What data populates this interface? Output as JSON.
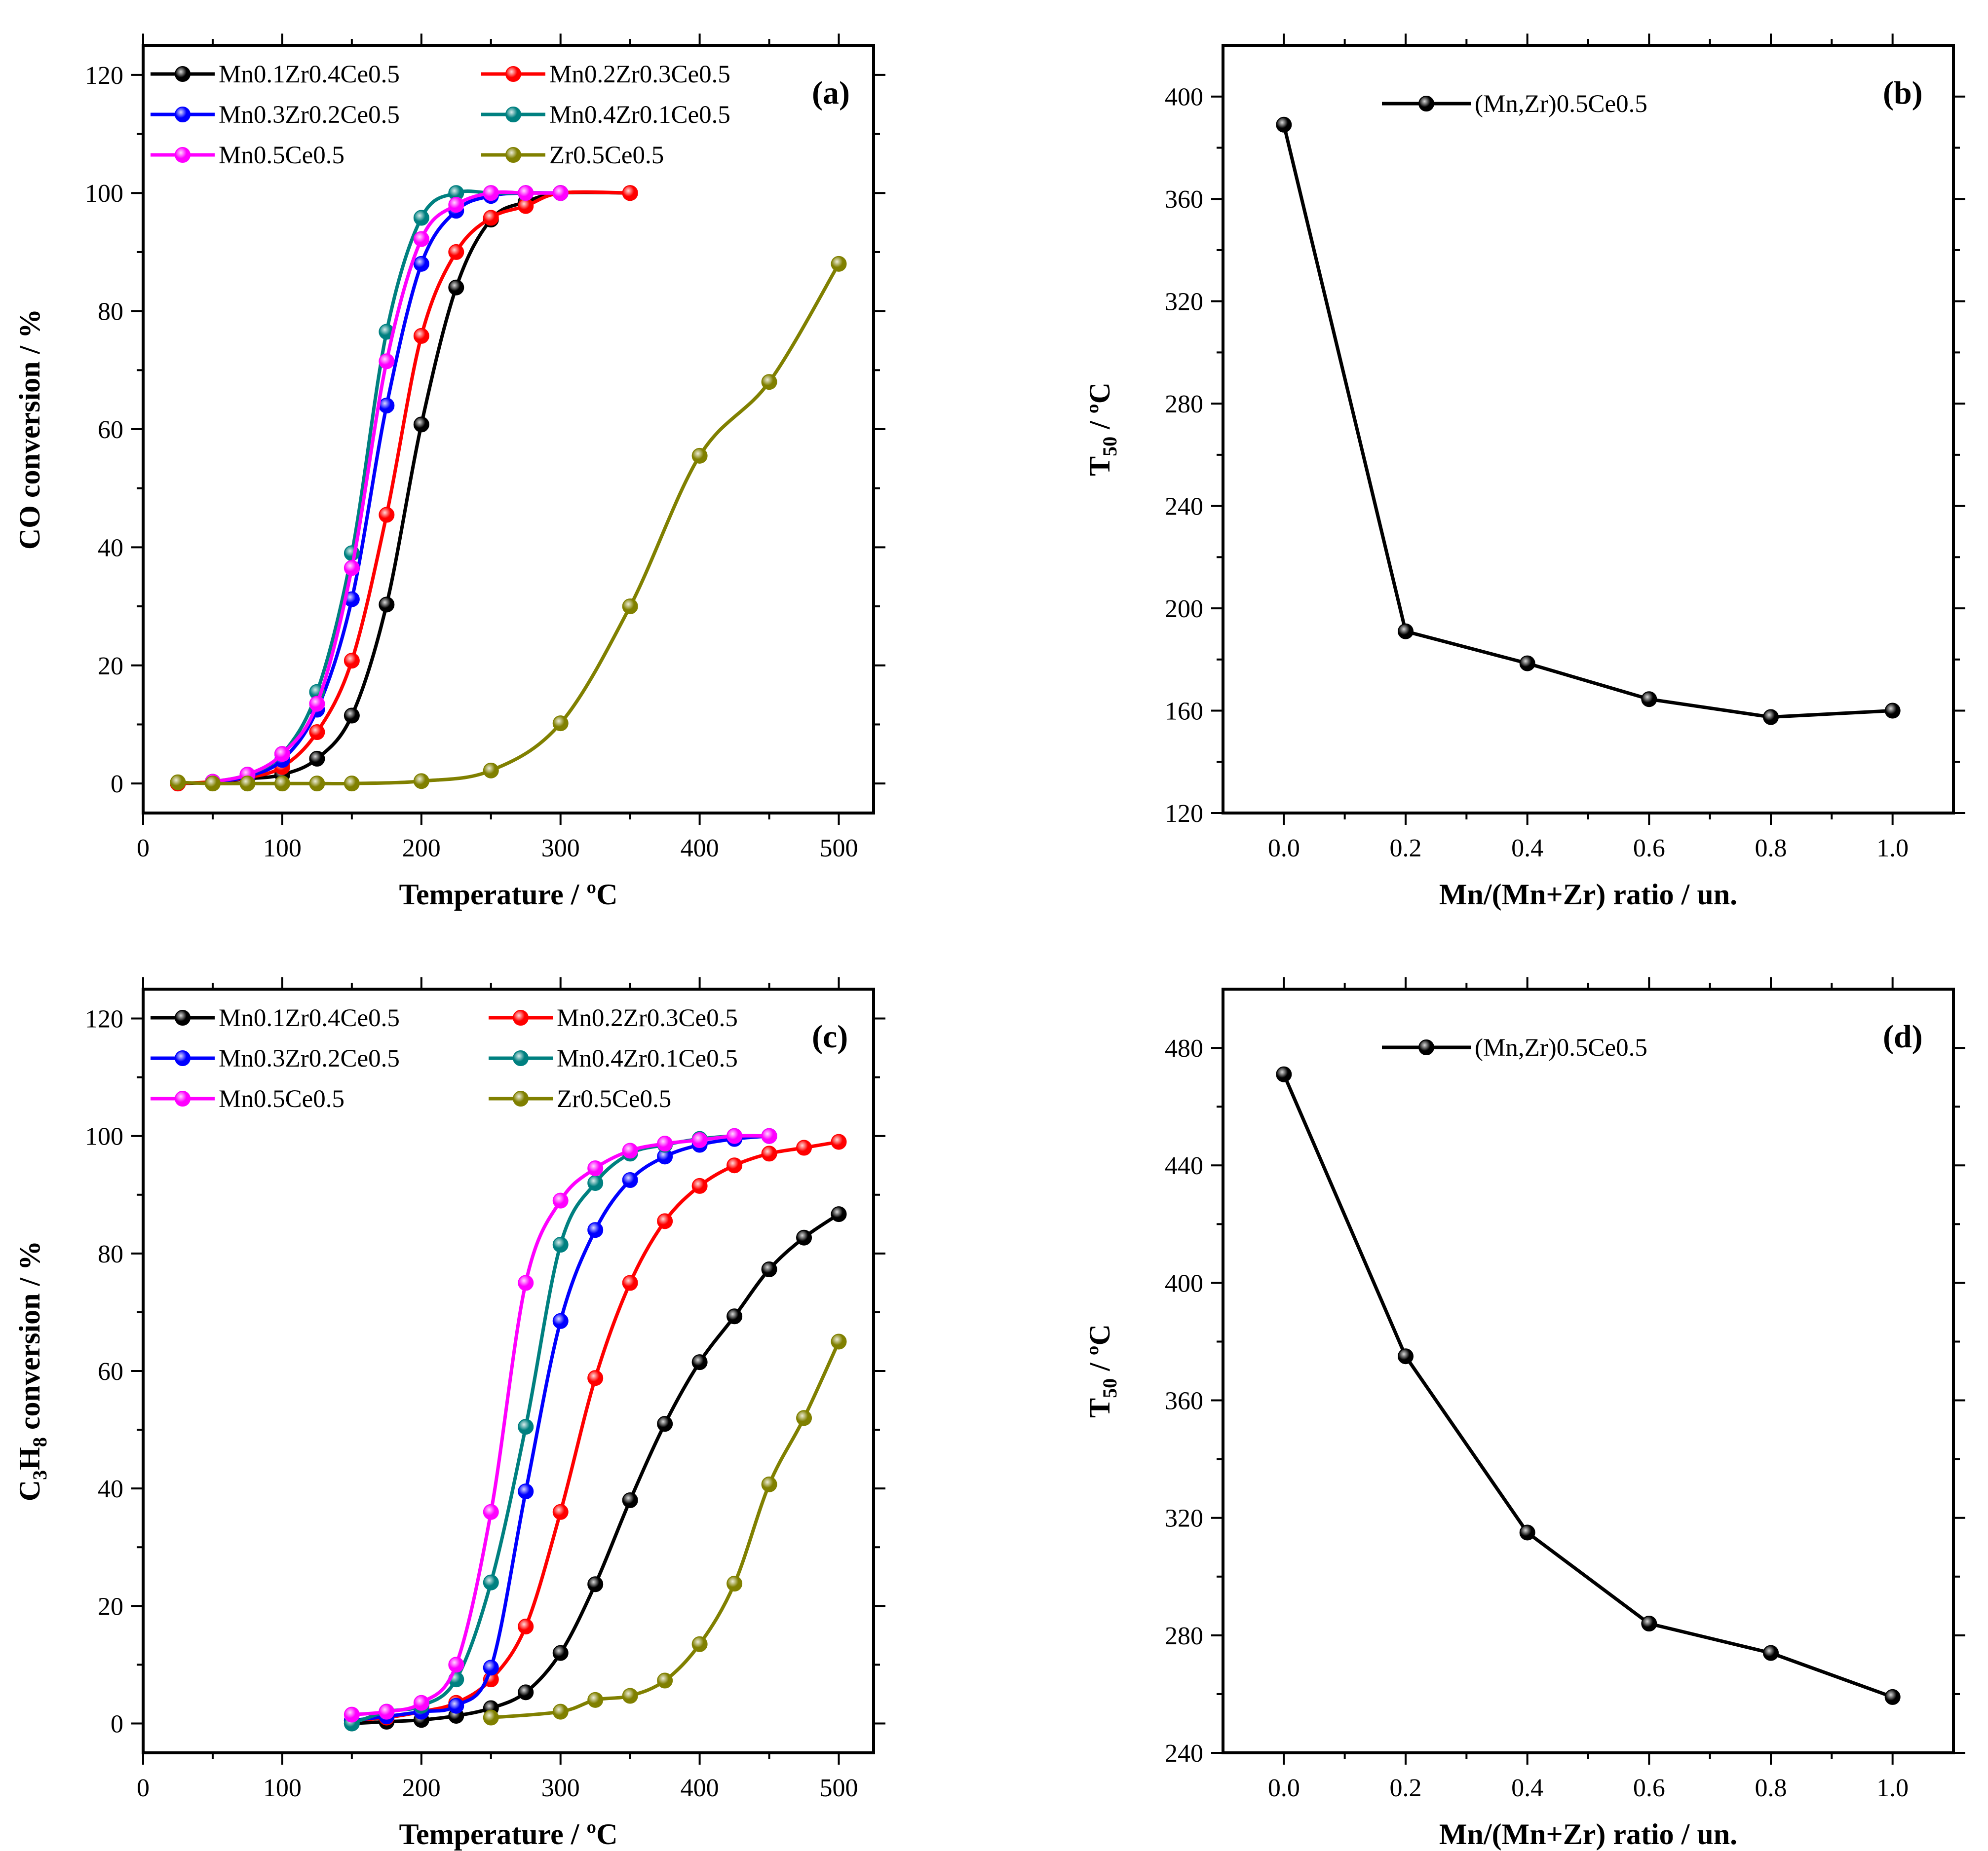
{
  "chart_data": [
    {
      "panel": "(a)",
      "type": "line",
      "xlabel": "Temperature / ºC",
      "ylabel": "CO conversion / %",
      "xlim": [
        0,
        525
      ],
      "ylim": [
        -5,
        125
      ],
      "xticks": [
        0,
        100,
        200,
        300,
        400,
        500
      ],
      "yticks": [
        0,
        20,
        40,
        60,
        80,
        100,
        120
      ],
      "legend_position": "top-left",
      "series": [
        {
          "name": "Mn0.1Zr0.4Ce0.5",
          "color": "#000000",
          "x": [
            25,
            50,
            75,
            100,
            125,
            150,
            175,
            200,
            225,
            250,
            275,
            300,
            350
          ],
          "y": [
            0,
            0.2,
            0.8,
            1.5,
            4.2,
            11.5,
            30.3,
            60.8,
            84.0,
            95.5,
            98.5,
            100,
            100
          ]
        },
        {
          "name": "Mn0.2Zr0.3Ce0.5",
          "color": "#ff0000",
          "x": [
            25,
            50,
            75,
            100,
            125,
            150,
            175,
            200,
            225,
            250,
            275,
            300,
            350
          ],
          "y": [
            0,
            0.3,
            1.0,
            2.8,
            8.7,
            20.8,
            45.5,
            75.8,
            90.0,
            95.8,
            97.8,
            100,
            100
          ]
        },
        {
          "name": "Mn0.3Zr0.2Ce0.5",
          "color": "#0000ff",
          "x": [
            50,
            75,
            100,
            125,
            150,
            175,
            200,
            225,
            250,
            275,
            300
          ],
          "y": [
            0.2,
            1.2,
            4.0,
            12.5,
            31.2,
            64.0,
            88.0,
            97.0,
            99.5,
            100,
            100
          ]
        },
        {
          "name": "Mn0.4Zr0.1Ce0.5",
          "color": "#008080",
          "x": [
            50,
            75,
            100,
            125,
            150,
            175,
            200,
            225,
            250,
            275,
            300
          ],
          "y": [
            0.3,
            1.5,
            5.0,
            15.5,
            39.0,
            76.5,
            95.8,
            100,
            100,
            100,
            100
          ]
        },
        {
          "name": "Mn0.5Ce0.5",
          "color": "#ff00ff",
          "x": [
            50,
            75,
            100,
            125,
            150,
            175,
            200,
            225,
            250,
            275,
            300
          ],
          "y": [
            0.3,
            1.5,
            5.0,
            13.5,
            36.5,
            71.5,
            92.2,
            98.0,
            100,
            100,
            100
          ]
        },
        {
          "name": "Zr0.5Ce0.5",
          "color": "#808000",
          "x": [
            25,
            50,
            75,
            100,
            125,
            150,
            200,
            250,
            300,
            350,
            400,
            450,
            500
          ],
          "y": [
            0.2,
            0,
            0,
            0,
            0,
            0,
            0.4,
            2.2,
            10.2,
            30.0,
            55.5,
            68.0,
            88.0
          ]
        }
      ]
    },
    {
      "panel": "(b)",
      "type": "line",
      "xlabel": "Mn/(Mn+Zr) ratio / un.",
      "ylabel_main": "T",
      "ylabel_sub": "50",
      "ylabel_rest": " / ºC",
      "xlim": [
        -0.1,
        1.1
      ],
      "ylim": [
        120,
        420
      ],
      "xticks": [
        0.0,
        0.2,
        0.4,
        0.6,
        0.8,
        1.0
      ],
      "yticks": [
        120,
        160,
        200,
        240,
        280,
        320,
        360,
        400
      ],
      "legend_position": "top-left",
      "series": [
        {
          "name": "(Mn,Zr)0.5Ce0.5",
          "color": "#000000",
          "x": [
            0.0,
            0.2,
            0.4,
            0.6,
            0.8,
            1.0
          ],
          "y": [
            389,
            191,
            178.5,
            164.5,
            157.5,
            160
          ]
        }
      ]
    },
    {
      "panel": "(c)",
      "type": "line",
      "xlabel": "Temperature / ºC",
      "ylabel_parts": [
        "C",
        "3",
        "H",
        "8",
        " conversion / %"
      ],
      "xlim": [
        0,
        525
      ],
      "ylim": [
        -5,
        125
      ],
      "xticks": [
        0,
        100,
        200,
        300,
        400,
        500
      ],
      "yticks": [
        0,
        20,
        40,
        60,
        80,
        100,
        120
      ],
      "legend_position": "top-left",
      "series": [
        {
          "name": "Mn0.1Zr0.4Ce0.5",
          "color": "#000000",
          "x": [
            150,
            175,
            200,
            225,
            250,
            275,
            300,
            325,
            350,
            375,
            400,
            425,
            450,
            475,
            500
          ],
          "y": [
            0,
            0.3,
            0.6,
            1.3,
            2.6,
            5.3,
            12.0,
            23.7,
            38.0,
            51.0,
            61.5,
            69.3,
            77.3,
            82.7,
            86.7
          ]
        },
        {
          "name": "Mn0.2Zr0.3Ce0.5",
          "color": "#ff0000",
          "x": [
            150,
            175,
            200,
            225,
            250,
            275,
            300,
            325,
            350,
            375,
            400,
            425,
            450,
            475,
            500
          ],
          "y": [
            0.5,
            1.0,
            2.0,
            3.5,
            7.5,
            16.5,
            36.0,
            58.8,
            75.0,
            85.5,
            91.5,
            95.0,
            97.0,
            98.0,
            99.0
          ]
        },
        {
          "name": "Mn0.3Zr0.2Ce0.5",
          "color": "#0000ff",
          "x": [
            150,
            175,
            200,
            225,
            250,
            275,
            300,
            325,
            350,
            375,
            400,
            425,
            450
          ],
          "y": [
            0.5,
            1.2,
            2.0,
            3.0,
            9.5,
            39.5,
            68.5,
            84.0,
            92.5,
            96.5,
            98.5,
            99.5,
            100
          ]
        },
        {
          "name": "Mn0.4Zr0.1Ce0.5",
          "color": "#008080",
          "x": [
            150,
            175,
            200,
            225,
            250,
            275,
            300,
            325,
            350,
            375,
            400,
            425,
            450
          ],
          "y": [
            0,
            2.0,
            3.0,
            7.5,
            24.0,
            50.5,
            81.5,
            92.0,
            97.0,
            98.5,
            99.5,
            100,
            100
          ]
        },
        {
          "name": "Mn0.5Ce0.5",
          "color": "#ff00ff",
          "x": [
            150,
            175,
            200,
            225,
            250,
            275,
            300,
            325,
            350,
            375,
            400,
            425,
            450
          ],
          "y": [
            1.5,
            2.0,
            3.5,
            10.0,
            36.0,
            75.0,
            89.0,
            94.5,
            97.5,
            98.7,
            99.3,
            100,
            100
          ]
        },
        {
          "name": "Zr0.5Ce0.5",
          "color": "#808000",
          "x": [
            250,
            300,
            325,
            350,
            375,
            400,
            425,
            450,
            475,
            500
          ],
          "y": [
            1.0,
            2.0,
            4.0,
            4.7,
            7.3,
            13.5,
            23.8,
            40.7,
            52.0,
            65.0
          ]
        }
      ]
    },
    {
      "panel": "(d)",
      "type": "line",
      "xlabel": "Mn/(Mn+Zr) ratio / un.",
      "ylabel_main": "T",
      "ylabel_sub": "50",
      "ylabel_rest": " / ºC",
      "xlim": [
        -0.1,
        1.1
      ],
      "ylim": [
        240,
        500
      ],
      "xticks": [
        0.0,
        0.2,
        0.4,
        0.6,
        0.8,
        1.0
      ],
      "yticks": [
        240,
        280,
        320,
        360,
        400,
        440,
        480
      ],
      "legend_position": "top-left",
      "series": [
        {
          "name": "(Mn,Zr)0.5Ce0.5",
          "color": "#000000",
          "x": [
            0.0,
            0.2,
            0.4,
            0.6,
            0.8,
            1.0
          ],
          "y": [
            471,
            375,
            315,
            284,
            274,
            259
          ]
        }
      ]
    }
  ]
}
